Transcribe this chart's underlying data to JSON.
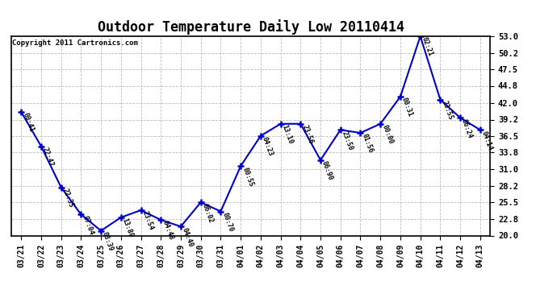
{
  "title": "Outdoor Temperature Daily Low 20110414",
  "copyright_text": "Copyright 2011 Cartronics.com",
  "line_color": "#0000CC",
  "marker": "+",
  "marker_size": 6,
  "marker_linewidth": 1.8,
  "line_width": 1.5,
  "background_color": "#ffffff",
  "grid_color": "#bbbbbb",
  "ylim": [
    20.0,
    53.0
  ],
  "yticks": [
    20.0,
    22.8,
    25.5,
    28.2,
    31.0,
    33.8,
    36.5,
    39.2,
    42.0,
    44.8,
    47.5,
    50.2,
    53.0
  ],
  "dates": [
    "03/21",
    "03/22",
    "03/23",
    "03/24",
    "03/25",
    "03/26",
    "03/27",
    "03/28",
    "03/29",
    "03/30",
    "03/31",
    "04/01",
    "04/02",
    "04/03",
    "04/04",
    "04/05",
    "04/06",
    "04/07",
    "04/08",
    "04/09",
    "04/10",
    "04/11",
    "04/12",
    "04/13"
  ],
  "values": [
    40.5,
    34.8,
    28.0,
    23.5,
    20.8,
    23.0,
    24.2,
    22.6,
    21.5,
    25.5,
    24.0,
    31.5,
    36.5,
    38.5,
    38.5,
    32.5,
    37.5,
    37.0,
    38.5,
    43.0,
    53.0,
    42.5,
    39.5,
    37.5
  ],
  "annotations": [
    "00:41",
    "22:47",
    "22:35",
    "07:04",
    "03:39",
    "13:80",
    "23:54",
    "04:48",
    "04:40",
    "06:02",
    "00:70",
    "00:55",
    "04:23",
    "13:10",
    "23:56",
    "06:90",
    "23:50",
    "01:56",
    "00:00",
    "00:31",
    "02:21",
    "23:55",
    "06:24",
    "04:14"
  ],
  "annotation_fontsize": 6.0,
  "annotation_rotation": -70,
  "tick_fontsize": 7,
  "ytick_fontsize": 7.5,
  "title_fontsize": 12,
  "copyright_fontsize": 6.5
}
